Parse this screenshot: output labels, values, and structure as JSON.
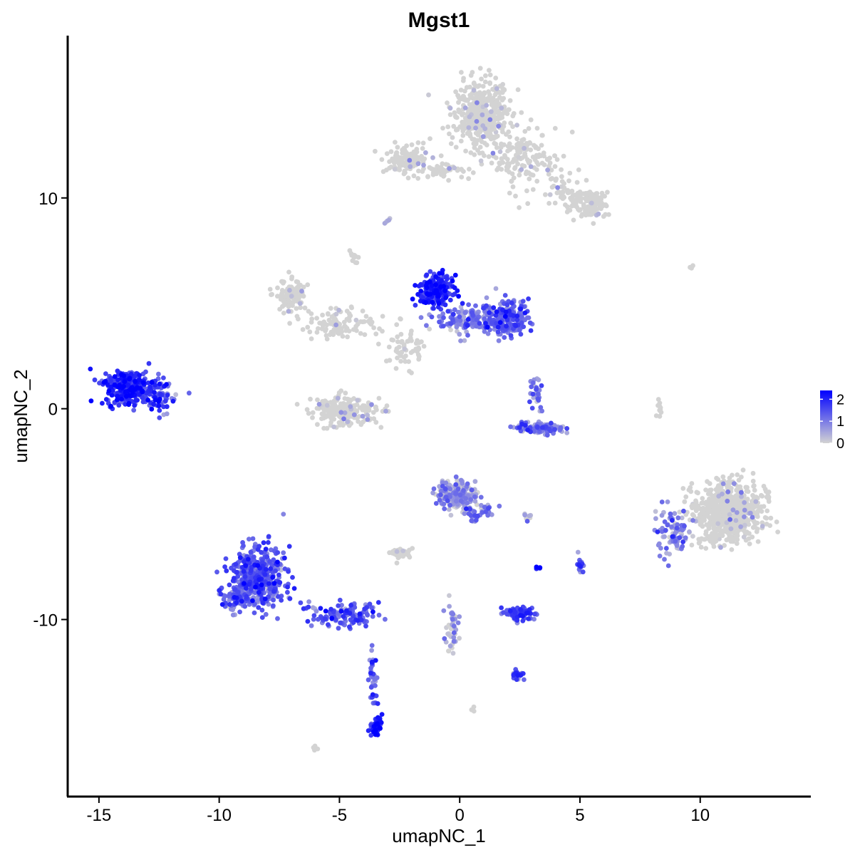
{
  "chart_data": {
    "type": "scatter",
    "title": "Mgst1",
    "xlabel": "umapNC_1",
    "ylabel": "umapNC_2",
    "xlim": [
      -16.3,
      14.6
    ],
    "ylim": [
      -18.4,
      17.7
    ],
    "x_ticks": [
      -15,
      -10,
      -5,
      0,
      5,
      10
    ],
    "x_tick_labels": [
      "-15",
      "-10",
      "-5",
      "0",
      "5",
      "10"
    ],
    "y_ticks": [
      -10,
      0,
      10
    ],
    "y_tick_labels": [
      "-10",
      "0",
      "10"
    ],
    "color_scale": {
      "low": "#d3d3d3",
      "high": "#0000ff",
      "min": 0,
      "max": 2.4
    },
    "legend": {
      "title": "",
      "placement": "right",
      "breaks": [
        0,
        1,
        2
      ],
      "labels": [
        "0",
        "1",
        "2"
      ]
    },
    "grid": false,
    "note": "Point clouds are approximated as clusters (center x, center y, spread, count, mean expression)",
    "clusters": [
      {
        "cx": 0.9,
        "cy": 14.0,
        "sx": 0.9,
        "sy": 1.1,
        "n": 420,
        "expr": 0.05
      },
      {
        "cx": 2.6,
        "cy": 11.8,
        "sx": 1.2,
        "sy": 1.0,
        "n": 150,
        "expr": 0.03
      },
      {
        "cx": 5.5,
        "cy": 9.7,
        "sx": 0.5,
        "sy": 0.5,
        "n": 120,
        "expr": 0.0
      },
      {
        "cx": -2.2,
        "cy": 11.8,
        "sx": 0.6,
        "sy": 0.5,
        "n": 120,
        "expr": 0.03
      },
      {
        "cx": -0.8,
        "cy": 11.3,
        "sx": 0.9,
        "sy": 0.25,
        "n": 50,
        "expr": 0.0
      },
      {
        "cx": 4.3,
        "cy": 10.3,
        "sx": 0.7,
        "sy": 0.7,
        "n": 50,
        "expr": 0.0
      },
      {
        "cx": -13.7,
        "cy": 1.0,
        "sx": 0.7,
        "sy": 0.6,
        "n": 300,
        "expr": 1.8
      },
      {
        "cx": -12.5,
        "cy": 0.6,
        "sx": 0.5,
        "sy": 0.6,
        "n": 60,
        "expr": 1.4
      },
      {
        "cx": -7.0,
        "cy": 5.3,
        "sx": 0.5,
        "sy": 0.6,
        "n": 110,
        "expr": 0.03
      },
      {
        "cx": -5.0,
        "cy": 4.0,
        "sx": 1.1,
        "sy": 0.5,
        "n": 100,
        "expr": 0.02
      },
      {
        "cx": -4.7,
        "cy": -0.1,
        "sx": 1.0,
        "sy": 0.5,
        "n": 200,
        "expr": 0.2
      },
      {
        "cx": -1.0,
        "cy": 5.6,
        "sx": 0.5,
        "sy": 0.5,
        "n": 220,
        "expr": 1.8
      },
      {
        "cx": 0.3,
        "cy": 4.2,
        "sx": 0.9,
        "sy": 0.5,
        "n": 140,
        "expr": 0.9
      },
      {
        "cx": 2.0,
        "cy": 4.3,
        "sx": 0.6,
        "sy": 0.6,
        "n": 200,
        "expr": 1.2
      },
      {
        "cx": -2.3,
        "cy": 3.0,
        "sx": 0.6,
        "sy": 0.8,
        "n": 60,
        "expr": 0.2
      },
      {
        "cx": 3.3,
        "cy": -0.9,
        "sx": 0.7,
        "sy": 0.2,
        "n": 110,
        "expr": 1.0
      },
      {
        "cx": 3.2,
        "cy": 0.8,
        "sx": 0.2,
        "sy": 0.6,
        "n": 30,
        "expr": 0.8
      },
      {
        "cx": 11.1,
        "cy": -4.9,
        "sx": 1.0,
        "sy": 1.0,
        "n": 650,
        "expr": 0.15
      },
      {
        "cx": 8.8,
        "cy": -5.8,
        "sx": 0.5,
        "sy": 0.8,
        "n": 80,
        "expr": 0.8
      },
      {
        "cx": -8.4,
        "cy": -8.0,
        "sx": 0.8,
        "sy": 1.0,
        "n": 450,
        "expr": 1.3
      },
      {
        "cx": -9.3,
        "cy": -9.0,
        "sx": 0.4,
        "sy": 0.4,
        "n": 80,
        "expr": 1.0
      },
      {
        "cx": -4.8,
        "cy": -9.8,
        "sx": 1.0,
        "sy": 0.4,
        "n": 120,
        "expr": 1.3
      },
      {
        "cx": -3.6,
        "cy": -12.8,
        "sx": 0.12,
        "sy": 1.2,
        "n": 40,
        "expr": 1.3
      },
      {
        "cx": -3.5,
        "cy": -15.0,
        "sx": 0.2,
        "sy": 0.3,
        "n": 40,
        "expr": 2.0
      },
      {
        "cx": -0.1,
        "cy": -4.1,
        "sx": 0.6,
        "sy": 0.5,
        "n": 200,
        "expr": 0.5
      },
      {
        "cx": 0.8,
        "cy": -4.9,
        "sx": 0.5,
        "sy": 0.3,
        "n": 30,
        "expr": 1.0
      },
      {
        "cx": -2.5,
        "cy": -6.9,
        "sx": 0.3,
        "sy": 0.2,
        "n": 40,
        "expr": 0.2
      },
      {
        "cx": -0.3,
        "cy": -10.7,
        "sx": 0.2,
        "sy": 1.0,
        "n": 40,
        "expr": 0.3
      },
      {
        "cx": 2.5,
        "cy": -9.7,
        "sx": 0.45,
        "sy": 0.2,
        "n": 90,
        "expr": 1.5
      },
      {
        "cx": 2.4,
        "cy": -12.6,
        "sx": 0.2,
        "sy": 0.2,
        "n": 25,
        "expr": 1.4
      },
      {
        "cx": 5.0,
        "cy": -7.4,
        "sx": 0.1,
        "sy": 0.3,
        "n": 15,
        "expr": 1.5
      },
      {
        "cx": 3.3,
        "cy": -7.6,
        "sx": 0.1,
        "sy": 0.1,
        "n": 5,
        "expr": 2.4
      },
      {
        "cx": 2.8,
        "cy": -5.1,
        "sx": 0.2,
        "sy": 0.1,
        "n": 8,
        "expr": 0.4
      },
      {
        "cx": 8.3,
        "cy": 0.1,
        "sx": 0.1,
        "sy": 0.4,
        "n": 10,
        "expr": 0.1
      },
      {
        "cx": -3.0,
        "cy": 8.9,
        "sx": 0.1,
        "sy": 0.1,
        "n": 5,
        "expr": 0.3
      },
      {
        "cx": -4.4,
        "cy": 7.2,
        "sx": 0.15,
        "sy": 0.3,
        "n": 10,
        "expr": 0.0
      },
      {
        "cx": -6.0,
        "cy": -16.1,
        "sx": 0.1,
        "sy": 0.1,
        "n": 5,
        "expr": 0.0
      },
      {
        "cx": 0.6,
        "cy": -14.3,
        "sx": 0.1,
        "sy": 0.1,
        "n": 4,
        "expr": 0.0
      },
      {
        "cx": 9.6,
        "cy": 6.7,
        "sx": 0.1,
        "sy": 0.05,
        "n": 4,
        "expr": 0.0
      }
    ]
  }
}
